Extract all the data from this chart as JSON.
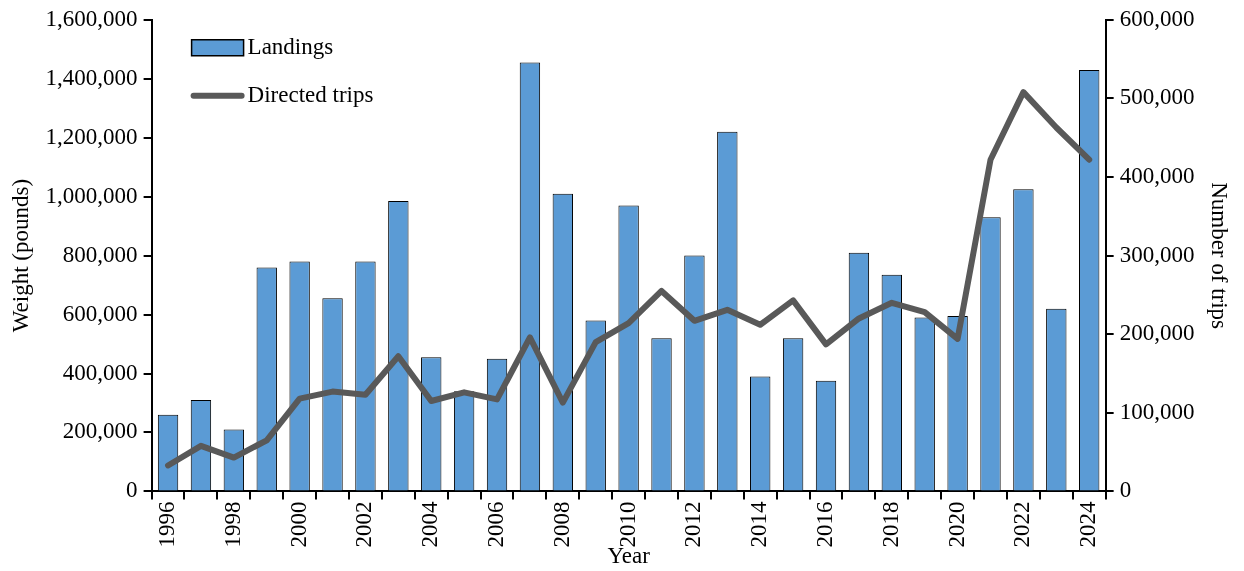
{
  "chart_data": {
    "type": "bar",
    "xlabel": "Year",
    "ylabel": "Weight (pounds)",
    "y2label": "Number of trips",
    "categories": [
      "1996",
      null,
      "1998",
      null,
      "2000",
      null,
      "2002",
      null,
      "2004",
      null,
      "2006",
      null,
      "2008",
      null,
      "2010",
      null,
      "2012",
      null,
      "2014",
      null,
      "2016",
      null,
      "2018",
      null,
      "2020",
      null,
      "2022",
      null,
      "2024"
    ],
    "series": [
      {
        "name": "Landings",
        "color": "#5b9bd5",
        "values": [
          260000,
          310000,
          210000,
          760000,
          780000,
          655000,
          780000,
          985000,
          455000,
          340000,
          450000,
          1455000,
          1010000,
          580000,
          970000,
          520000,
          800000,
          1220000,
          390000,
          520000,
          375000,
          810000,
          735000,
          590000,
          595000,
          930000,
          1025000,
          620000,
          1430000
        ]
      },
      {
        "name": "Directed trips",
        "type": "line",
        "axis": "y2",
        "color": "#595959",
        "values": [
          33000,
          58000,
          43000,
          65000,
          118000,
          127000,
          123000,
          172000,
          115000,
          126000,
          117000,
          196000,
          113000,
          190000,
          214000,
          255000,
          217000,
          231000,
          212000,
          243000,
          187000,
          220000,
          240000,
          228000,
          194000,
          422000,
          508000,
          463000,
          422000
        ]
      }
    ],
    "ylim": [
      0,
      1600000
    ],
    "yticks": [
      0,
      {
        "value": 200000,
        "label": "200,000"
      },
      {
        "value": 400000,
        "label": "400,000"
      },
      {
        "value": 600000,
        "label": "600,000"
      },
      {
        "value": 800000,
        "label": "800,000"
      },
      {
        "value": 1000000,
        "label": "1,000,000"
      },
      {
        "value": 1200000,
        "label": "1,200,000"
      },
      {
        "value": 1400000,
        "label": "1,400,000"
      },
      {
        "value": 1600000,
        "label": "1,600,000"
      }
    ],
    "y2lim": [
      0,
      600000
    ],
    "y2ticks": [
      0,
      {
        "value": 100000,
        "label": "100,000"
      },
      {
        "value": 200000,
        "label": "200,000"
      },
      {
        "value": 300000,
        "label": "300,000"
      },
      {
        "value": 400000,
        "label": "400,000"
      },
      {
        "value": 500000,
        "label": "500,000"
      },
      {
        "value": 600000,
        "label": "600,000"
      }
    ],
    "grid": false,
    "legend": "top left",
    "marker": "none"
  }
}
